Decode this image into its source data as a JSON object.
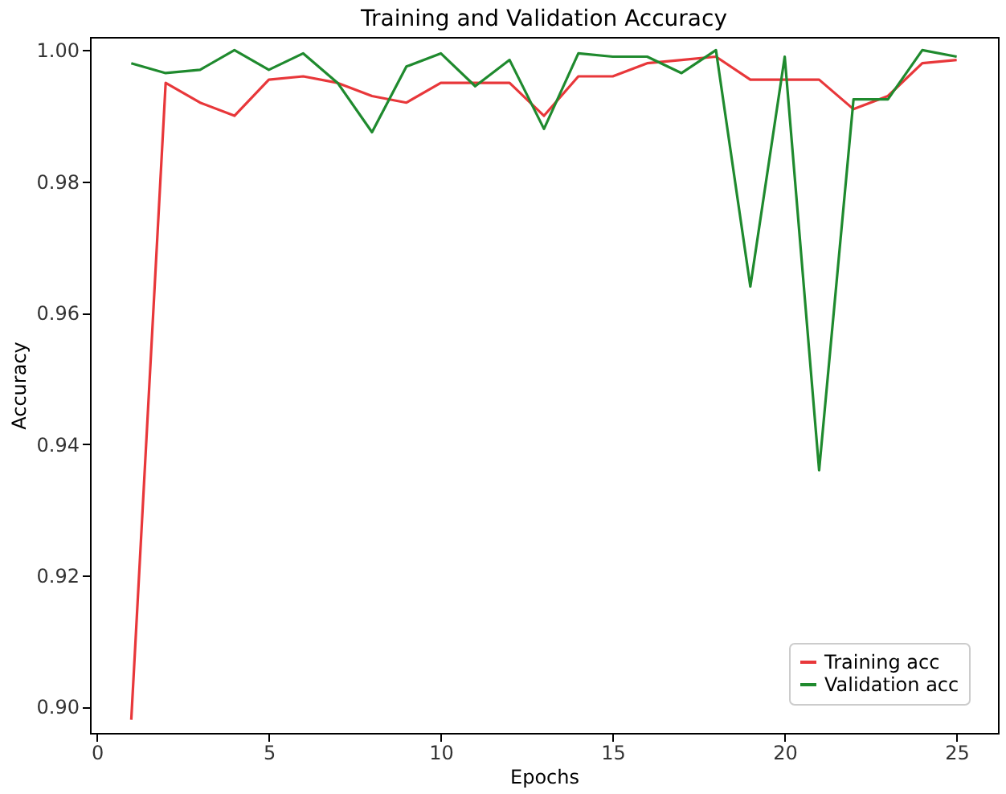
{
  "chart_data": {
    "type": "line",
    "title": "Training and Validation Accuracy",
    "xlabel": "Epochs",
    "ylabel": "Accuracy",
    "x": [
      1,
      2,
      3,
      4,
      5,
      6,
      7,
      8,
      9,
      10,
      11,
      12,
      13,
      14,
      15,
      16,
      17,
      18,
      19,
      20,
      21,
      22,
      23,
      24,
      25
    ],
    "series": [
      {
        "name": "Training acc",
        "color": "#e8373a",
        "values": [
          0.898,
          0.995,
          0.992,
          0.99,
          0.9955,
          0.996,
          0.995,
          0.993,
          0.992,
          0.995,
          0.995,
          0.995,
          0.99,
          0.996,
          0.996,
          0.998,
          0.9985,
          0.999,
          0.9955,
          0.9955,
          0.9955,
          0.991,
          0.993,
          0.998,
          0.9985
        ]
      },
      {
        "name": "Validation acc",
        "color": "#1f8a2e",
        "values": [
          0.998,
          0.9965,
          0.997,
          1.0,
          0.997,
          0.9995,
          0.995,
          0.9875,
          0.9975,
          0.9995,
          0.9945,
          0.9985,
          0.988,
          0.9995,
          0.999,
          0.999,
          0.9965,
          1.0,
          0.964,
          0.999,
          0.936,
          0.9925,
          0.9925,
          1.0,
          0.999
        ]
      }
    ],
    "xlim": [
      -0.2,
      26.2
    ],
    "xticks": [
      0,
      5,
      10,
      15,
      20,
      25
    ],
    "ylim": [
      0.896,
      1.002
    ],
    "yticks": [
      {
        "value": 0.9,
        "label": "0.90"
      },
      {
        "value": 0.92,
        "label": "0.92"
      },
      {
        "value": 0.94,
        "label": "0.94"
      },
      {
        "value": 0.96,
        "label": "0.96"
      },
      {
        "value": 0.98,
        "label": "0.98"
      },
      {
        "value": 1.0,
        "label": "1.00"
      }
    ],
    "grid": false,
    "legend": "bottom right",
    "marker": "none",
    "line_style": "solid"
  }
}
